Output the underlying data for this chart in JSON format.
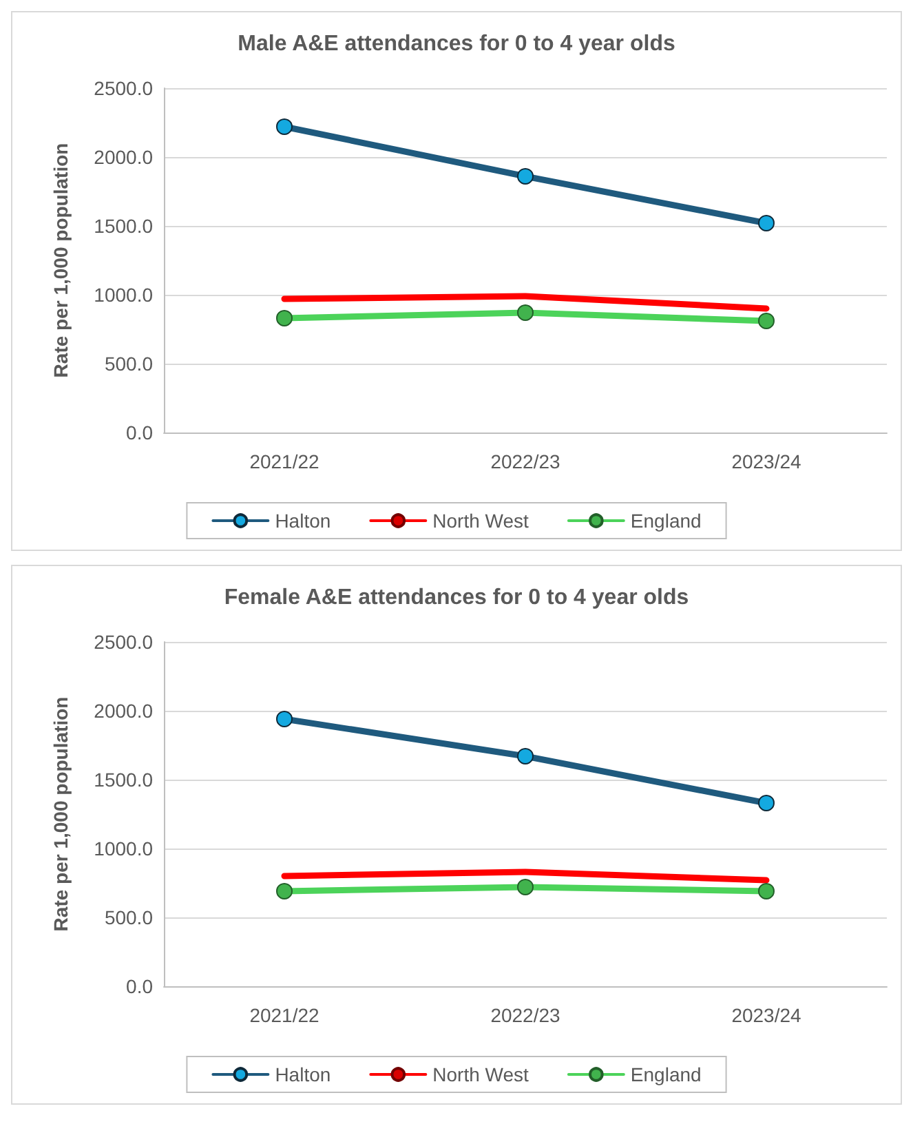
{
  "chart_data": [
    {
      "type": "line",
      "title": "Male A&E attendances for 0 to 4 year olds",
      "ylabel": "Rate per 1,000 population",
      "categories": [
        "2021/22",
        "2022/23",
        "2023/24"
      ],
      "series": [
        {
          "name": "Halton",
          "color": "#1f5a7e",
          "marker": "circle",
          "values": [
            2220,
            1860,
            1520
          ]
        },
        {
          "name": "North West",
          "color": "#ff0000",
          "marker": "none",
          "values": [
            970,
            990,
            900
          ]
        },
        {
          "name": "England",
          "color": "#4cd35a",
          "marker": "circle",
          "values": [
            830,
            870,
            810
          ]
        }
      ],
      "ylim": [
        0,
        2500
      ],
      "yticks": [
        {
          "value": 0,
          "label": "0.0"
        },
        {
          "value": 500,
          "label": "500.0"
        },
        {
          "value": 1000,
          "label": "1000.0"
        },
        {
          "value": 1500,
          "label": "1500.0"
        },
        {
          "value": 2000,
          "label": "2000.0"
        },
        {
          "value": 2500,
          "label": "2500.0"
        }
      ],
      "grid": "y",
      "legend": "bottom",
      "line_style": "solid"
    },
    {
      "type": "line",
      "title": "Female A&E attendances for 0 to 4 year olds",
      "ylabel": "Rate per 1,000 population",
      "categories": [
        "2021/22",
        "2022/23",
        "2023/24"
      ],
      "series": [
        {
          "name": "Halton",
          "color": "#1f5a7e",
          "marker": "circle",
          "values": [
            1940,
            1670,
            1330
          ]
        },
        {
          "name": "North West",
          "color": "#ff0000",
          "marker": "none",
          "values": [
            800,
            830,
            770
          ]
        },
        {
          "name": "England",
          "color": "#4cd35a",
          "marker": "circle",
          "values": [
            690,
            720,
            690
          ]
        }
      ],
      "ylim": [
        0,
        2500
      ],
      "yticks": [
        {
          "value": 0,
          "label": "0.0"
        },
        {
          "value": 500,
          "label": "500.0"
        },
        {
          "value": 1000,
          "label": "1000.0"
        },
        {
          "value": 1500,
          "label": "1500.0"
        },
        {
          "value": 2000,
          "label": "2000.0"
        },
        {
          "value": 2500,
          "label": "2500.0"
        }
      ],
      "grid": "y",
      "legend": "bottom",
      "line_style": "solid"
    }
  ]
}
